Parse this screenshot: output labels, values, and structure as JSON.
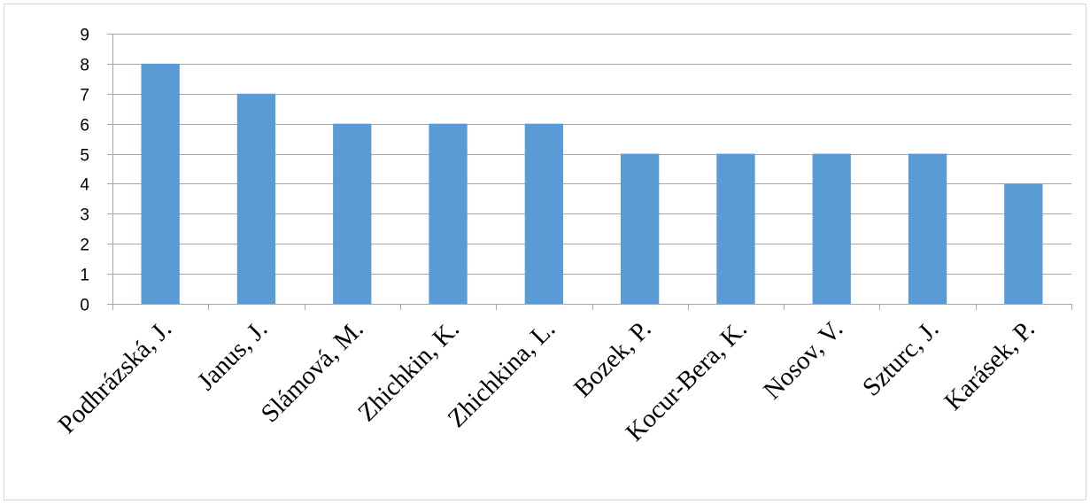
{
  "chart_data": {
    "type": "bar",
    "title": "",
    "xlabel": "",
    "ylabel": "",
    "categories": [
      "Podhrázská, J.",
      "Janus, J.",
      "Slámová, M.",
      "Zhichkin, K.",
      "Zhichkina, L.",
      "Bozek, P.",
      "Kocur-Bera, K.",
      "Nosov, V.",
      "Szturc, J.",
      "Karásek, P."
    ],
    "values": [
      8,
      7,
      6,
      6,
      6,
      5,
      5,
      5,
      5,
      4
    ],
    "ylim": [
      0,
      9
    ],
    "yticks": [
      0,
      1,
      2,
      3,
      4,
      5,
      6,
      7,
      8,
      9
    ],
    "grid": true,
    "legend": "none",
    "bar_color": "#5b9bd5",
    "grid_color": "#a6a6a6"
  }
}
